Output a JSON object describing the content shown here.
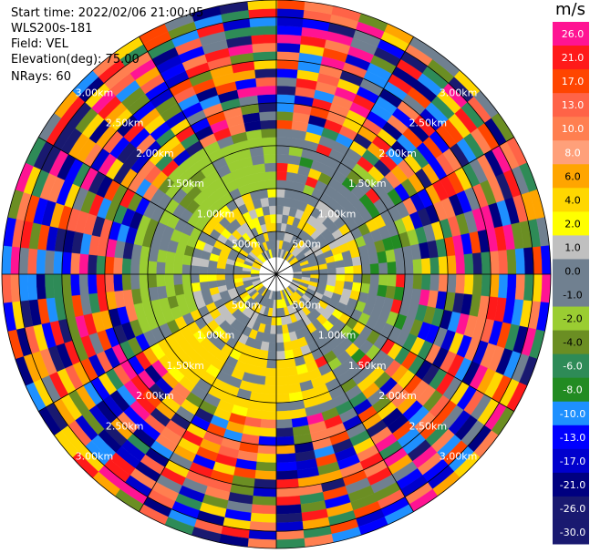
{
  "header": {
    "start_time": "Start time: 2022/02/06 21:00:05",
    "instrument": "WLS200s-181",
    "field": "Field: VEL",
    "elevation": "Elevation(deg): 75.00",
    "nrays": "NRays: 60"
  },
  "chart_data": {
    "type": "heatmap",
    "projection": "polar PPI",
    "field": "VEL",
    "n_rays": 60,
    "elevation_deg": 75.0,
    "range_max_km": 3.2,
    "range_rings": [
      {
        "range_km": 0.5,
        "label": "500m"
      },
      {
        "range_km": 1.0,
        "label": "1.00km"
      },
      {
        "range_km": 1.5,
        "label": "1.50km"
      },
      {
        "range_km": 2.0,
        "label": "2.00km"
      },
      {
        "range_km": 2.5,
        "label": "2.50km"
      },
      {
        "range_km": 3.0,
        "label": "3.00km"
      }
    ],
    "colorbar": {
      "units": "m/s",
      "tick_labels": [
        "26.0",
        "21.0",
        "17.0",
        "13.0",
        "10.0",
        "8.0",
        "6.0",
        "4.0",
        "2.0",
        "1.0",
        "0.0",
        "-1.0",
        "-2.0",
        "-4.0",
        "-6.0",
        "-8.0",
        "-10.0",
        "-13.0",
        "-17.0",
        "-21.0",
        "-26.0",
        "-30.0"
      ],
      "colors": [
        "#ff1493",
        "#ff1a1a",
        "#ff4500",
        "#ff6347",
        "#ff7f50",
        "#ffa07a",
        "#ffa500",
        "#ffd700",
        "#ffff00",
        "#c0c0c0",
        "#708090",
        "#708090",
        "#9acd32",
        "#6b8e23",
        "#2e8b57",
        "#228b22",
        "#1e90ff",
        "#0000ff",
        "#0000cd",
        "#000080",
        "#191970",
        "#191970"
      ]
    },
    "dominant_values_by_range": [
      {
        "range_km": [
          0.25,
          1.0
        ],
        "values_ms": [
          -1.0,
          0.0,
          2.0,
          4.0
        ]
      },
      {
        "range_km": [
          1.0,
          1.7
        ],
        "values_ms": [
          -2.0,
          0.0,
          4.0,
          -4.0
        ]
      },
      {
        "range_km": [
          1.7,
          3.2
        ],
        "values_ms": [
          -26.0,
          -17.0,
          26.0,
          21.0,
          10.0,
          6.0,
          2.0,
          -4.0
        ]
      }
    ]
  }
}
